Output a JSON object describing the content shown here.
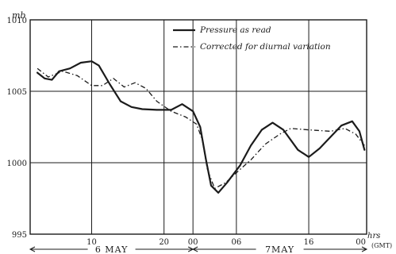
{
  "chart_data": {
    "type": "line",
    "title": "",
    "xlabel": "",
    "ylabel": "mb",
    "x_unit_label": "hrs",
    "x_unit_note": "(GMT)",
    "ylim": [
      995,
      1010
    ],
    "y_ticks": [
      995,
      1000,
      1005,
      1010
    ],
    "y_tick_labels": [
      "995",
      "1000",
      "1005",
      "1010"
    ],
    "x_ticks": [
      {
        "hour": 10,
        "label": "10"
      },
      {
        "hour": 20,
        "label": "20"
      },
      {
        "hour": 24,
        "label": "00"
      },
      {
        "hour": 30,
        "label": "06"
      },
      {
        "hour": 40,
        "label": "16"
      },
      {
        "hour": 48,
        "label": "00"
      }
    ],
    "xlim": [
      1.5,
      48
    ],
    "date_spans": [
      {
        "label": "6 MAY",
        "from": 1.5,
        "to": 24
      },
      {
        "label": "7MAY",
        "from": 24,
        "to": 48
      }
    ],
    "grid": true,
    "legend_position": "top-right",
    "series": [
      {
        "name": "Pressure as read",
        "style": "solid",
        "points": [
          [
            2.5,
            1006.3
          ],
          [
            3.5,
            1005.9
          ],
          [
            4.5,
            1005.8
          ],
          [
            5.5,
            1006.4
          ],
          [
            7,
            1006.6
          ],
          [
            8.5,
            1007.0
          ],
          [
            10,
            1007.1
          ],
          [
            11,
            1006.8
          ],
          [
            12.5,
            1005.5
          ],
          [
            14,
            1004.3
          ],
          [
            15.5,
            1003.9
          ],
          [
            17,
            1003.75
          ],
          [
            19,
            1003.7
          ],
          [
            21,
            1003.7
          ],
          [
            22.5,
            1004.1
          ],
          [
            24,
            1003.6
          ],
          [
            25,
            1002.5
          ],
          [
            25.8,
            1000.2
          ],
          [
            26.5,
            998.4
          ],
          [
            27.5,
            997.9
          ],
          [
            28.7,
            998.6
          ],
          [
            30.5,
            999.8
          ],
          [
            32,
            1001.2
          ],
          [
            33.5,
            1002.3
          ],
          [
            35,
            1002.8
          ],
          [
            36.5,
            1002.3
          ],
          [
            38.5,
            1000.9
          ],
          [
            40,
            1000.4
          ],
          [
            41.5,
            1001.0
          ],
          [
            43,
            1001.8
          ],
          [
            44.5,
            1002.6
          ],
          [
            46,
            1002.9
          ],
          [
            47,
            1002.2
          ],
          [
            47.7,
            1000.9
          ]
        ]
      },
      {
        "name": "Corrected for diurnal variation",
        "style": "dashdot",
        "points": [
          [
            2.5,
            1006.6
          ],
          [
            4,
            1006.0
          ],
          [
            6,
            1006.4
          ],
          [
            8,
            1006.1
          ],
          [
            10,
            1005.4
          ],
          [
            11.5,
            1005.4
          ],
          [
            13,
            1005.9
          ],
          [
            14.5,
            1005.3
          ],
          [
            16,
            1005.6
          ],
          [
            17.5,
            1005.2
          ],
          [
            19,
            1004.3
          ],
          [
            21,
            1003.6
          ],
          [
            23,
            1003.2
          ],
          [
            24.5,
            1002.7
          ],
          [
            25.3,
            1001.6
          ],
          [
            26,
            999.5
          ],
          [
            27,
            998.2
          ],
          [
            28.5,
            998.6
          ],
          [
            30,
            999.3
          ],
          [
            32,
            1000.2
          ],
          [
            34,
            1001.3
          ],
          [
            36,
            1002.0
          ],
          [
            37.5,
            1002.4
          ],
          [
            40,
            1002.3
          ],
          [
            43,
            1002.2
          ],
          [
            45,
            1002.4
          ],
          [
            46.5,
            1002.0
          ],
          [
            47.7,
            1001.2
          ]
        ]
      }
    ]
  }
}
